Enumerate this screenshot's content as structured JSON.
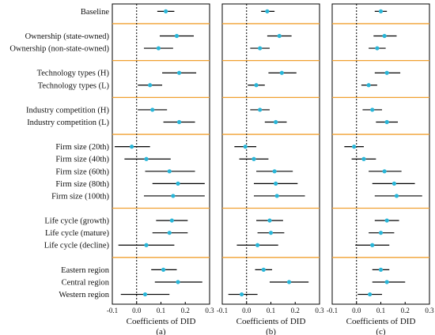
{
  "chart_data": {
    "type": "forest",
    "xlabel": "Coefficients of DID",
    "xlim": [
      -0.1,
      0.3
    ],
    "xticks": [
      "-0.1",
      "0.0",
      "0.1",
      "0.2",
      "0.3"
    ],
    "reference_line": 0,
    "colors": {
      "point": "#29b6d8",
      "ci": "#000000",
      "separator": "#f0a030",
      "zero_line": "#000000"
    },
    "rows": [
      "Baseline",
      "Ownership (state-owned)",
      "Ownership (non-state-owned)",
      "Technology types (H)",
      "Technology types (L)",
      "Industry competition (H)",
      "Industry competition (L)",
      "Firm size (20th)",
      "Firm size (40th)",
      "Firm size (60th)",
      "Firm size (80th)",
      "Firm size (100th)",
      "Life cycle (growth)",
      "Life cycle (mature)",
      "Life cycle (decline)",
      "Eastern region",
      "Central region",
      "Western region"
    ],
    "group_breaks_after": [
      0,
      2,
      4,
      6,
      11,
      14
    ],
    "panels": [
      {
        "label": "(a)",
        "points": [
          {
            "est": 0.12,
            "lo": 0.085,
            "hi": 0.155
          },
          {
            "est": 0.165,
            "lo": 0.095,
            "hi": 0.235
          },
          {
            "est": 0.09,
            "lo": 0.03,
            "hi": 0.15
          },
          {
            "est": 0.175,
            "lo": 0.105,
            "hi": 0.245
          },
          {
            "est": 0.055,
            "lo": 0.005,
            "hi": 0.105
          },
          {
            "est": 0.065,
            "lo": 0.005,
            "hi": 0.125
          },
          {
            "est": 0.175,
            "lo": 0.11,
            "hi": 0.24
          },
          {
            "est": -0.02,
            "lo": -0.09,
            "hi": 0.055
          },
          {
            "est": 0.04,
            "lo": -0.05,
            "hi": 0.14
          },
          {
            "est": 0.135,
            "lo": 0.035,
            "hi": 0.24
          },
          {
            "est": 0.17,
            "lo": 0.065,
            "hi": 0.28
          },
          {
            "est": 0.15,
            "lo": 0.03,
            "hi": 0.28
          },
          {
            "est": 0.145,
            "lo": 0.08,
            "hi": 0.21
          },
          {
            "est": 0.135,
            "lo": 0.065,
            "hi": 0.21
          },
          {
            "est": 0.04,
            "lo": -0.075,
            "hi": 0.155
          },
          {
            "est": 0.11,
            "lo": 0.06,
            "hi": 0.165
          },
          {
            "est": 0.17,
            "lo": 0.075,
            "hi": 0.27
          },
          {
            "est": 0.035,
            "lo": -0.065,
            "hi": 0.135
          }
        ]
      },
      {
        "label": "(b)",
        "points": [
          {
            "est": 0.085,
            "lo": 0.06,
            "hi": 0.115
          },
          {
            "est": 0.135,
            "lo": 0.085,
            "hi": 0.185
          },
          {
            "est": 0.055,
            "lo": 0.015,
            "hi": 0.095
          },
          {
            "est": 0.145,
            "lo": 0.09,
            "hi": 0.205
          },
          {
            "est": 0.04,
            "lo": 0.005,
            "hi": 0.075
          },
          {
            "est": 0.055,
            "lo": 0.015,
            "hi": 0.095
          },
          {
            "est": 0.12,
            "lo": 0.075,
            "hi": 0.165
          },
          {
            "est": -0.005,
            "lo": -0.05,
            "hi": 0.04
          },
          {
            "est": 0.03,
            "lo": -0.03,
            "hi": 0.09
          },
          {
            "est": 0.115,
            "lo": 0.04,
            "hi": 0.19
          },
          {
            "est": 0.12,
            "lo": 0.03,
            "hi": 0.21
          },
          {
            "est": 0.125,
            "lo": 0.03,
            "hi": 0.24
          },
          {
            "est": 0.095,
            "lo": 0.04,
            "hi": 0.15
          },
          {
            "est": 0.1,
            "lo": 0.045,
            "hi": 0.155
          },
          {
            "est": 0.045,
            "lo": -0.04,
            "hi": 0.13
          },
          {
            "est": 0.07,
            "lo": 0.035,
            "hi": 0.105
          },
          {
            "est": 0.175,
            "lo": 0.095,
            "hi": 0.255
          },
          {
            "est": -0.02,
            "lo": -0.075,
            "hi": 0.045
          }
        ]
      },
      {
        "label": "(c)",
        "points": [
          {
            "est": 0.1,
            "lo": 0.075,
            "hi": 0.125
          },
          {
            "est": 0.115,
            "lo": 0.07,
            "hi": 0.165
          },
          {
            "est": 0.085,
            "lo": 0.05,
            "hi": 0.12
          },
          {
            "est": 0.125,
            "lo": 0.075,
            "hi": 0.18
          },
          {
            "est": 0.05,
            "lo": 0.02,
            "hi": 0.085
          },
          {
            "est": 0.065,
            "lo": 0.025,
            "hi": 0.105
          },
          {
            "est": 0.125,
            "lo": 0.08,
            "hi": 0.17
          },
          {
            "est": -0.01,
            "lo": -0.05,
            "hi": 0.03
          },
          {
            "est": 0.03,
            "lo": -0.02,
            "hi": 0.08
          },
          {
            "est": 0.115,
            "lo": 0.05,
            "hi": 0.185
          },
          {
            "est": 0.155,
            "lo": 0.065,
            "hi": 0.24
          },
          {
            "est": 0.165,
            "lo": 0.075,
            "hi": 0.27
          },
          {
            "est": 0.125,
            "lo": 0.075,
            "hi": 0.175
          },
          {
            "est": 0.1,
            "lo": 0.05,
            "hi": 0.155
          },
          {
            "est": 0.065,
            "lo": -0.005,
            "hi": 0.135
          },
          {
            "est": 0.1,
            "lo": 0.065,
            "hi": 0.135
          },
          {
            "est": 0.125,
            "lo": 0.065,
            "hi": 0.2
          },
          {
            "est": 0.055,
            "lo": 0.005,
            "hi": 0.105
          }
        ]
      }
    ]
  }
}
